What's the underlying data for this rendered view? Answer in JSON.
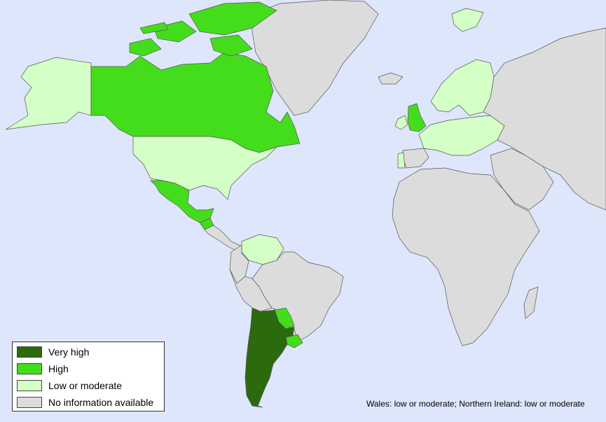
{
  "colors": {
    "ocean": "#dde6fb",
    "very_high": "#2b6a0d",
    "high": "#44dd1c",
    "low_moderate": "#d4ffc6",
    "no_info": "#dcdcdc",
    "border": "#555555"
  },
  "legend": {
    "items": [
      {
        "label": "Very high",
        "color": "#2b6a0d"
      },
      {
        "label": "High",
        "color": "#44dd1c"
      },
      {
        "label": "Low or moderate",
        "color": "#d4ffc6"
      },
      {
        "label": "No information available",
        "color": "#dcdcdc"
      }
    ]
  },
  "note": "Wales: low or moderate; Northern Ireland: low or moderate",
  "regions": [
    {
      "name": "Canada",
      "category": "high"
    },
    {
      "name": "Alaska",
      "category": "low_moderate"
    },
    {
      "name": "Greenland",
      "category": "no_info"
    },
    {
      "name": "United States",
      "category": "low_moderate"
    },
    {
      "name": "Mexico",
      "category": "high"
    },
    {
      "name": "Central America",
      "category": "no_info"
    },
    {
      "name": "Guatemala",
      "category": "high"
    },
    {
      "name": "Venezuela",
      "category": "low_moderate"
    },
    {
      "name": "Colombia",
      "category": "no_info"
    },
    {
      "name": "Brazil",
      "category": "no_info"
    },
    {
      "name": "Peru and Bolivia",
      "category": "no_info"
    },
    {
      "name": "Argentina and Chile",
      "category": "very_high"
    },
    {
      "name": "Paraguay",
      "category": "high"
    },
    {
      "name": "Uruguay",
      "category": "high"
    },
    {
      "name": "Great Britain",
      "category": "high"
    },
    {
      "name": "Ireland",
      "category": "low_moderate"
    },
    {
      "name": "Iceland",
      "category": "no_info"
    },
    {
      "name": "Scandinavia",
      "category": "low_moderate"
    },
    {
      "name": "Europe",
      "category": "low_moderate"
    },
    {
      "name": "Portugal",
      "category": "low_moderate"
    },
    {
      "name": "Spain",
      "category": "no_info"
    },
    {
      "name": "Russia and Asia",
      "category": "no_info"
    },
    {
      "name": "Middle East",
      "category": "no_info"
    },
    {
      "name": "Africa",
      "category": "no_info"
    },
    {
      "name": "Madagascar",
      "category": "no_info"
    },
    {
      "name": "Svalbard",
      "category": "low_moderate"
    }
  ]
}
